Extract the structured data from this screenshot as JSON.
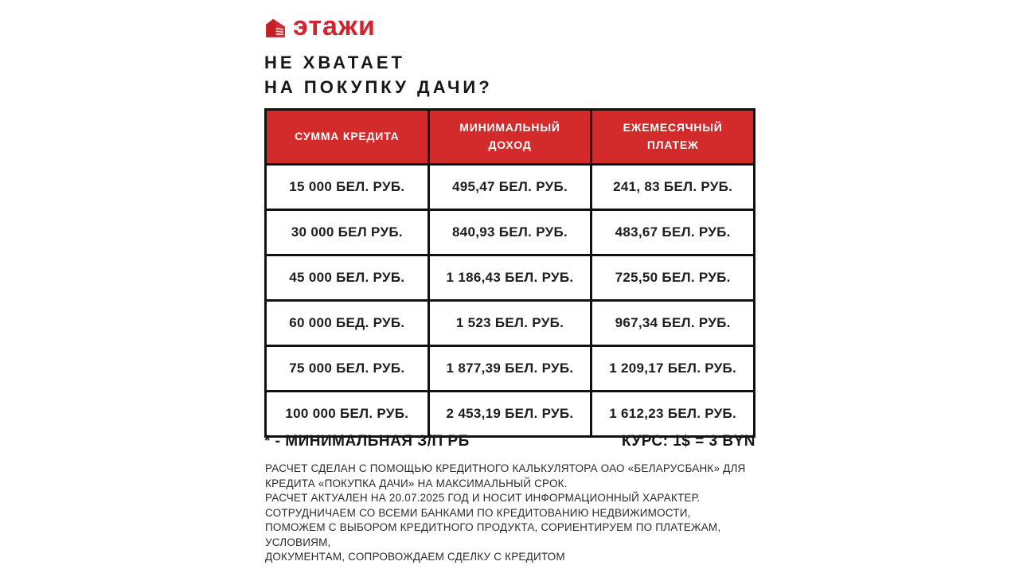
{
  "brand": {
    "logo_text": "этажи",
    "logo_color": "#d2232e",
    "logo_icon": "house-icon"
  },
  "title": {
    "line1": "НЕ ХВАТАЕТ",
    "line2": "НА ПОКУПКУ ДАЧИ?"
  },
  "table": {
    "header_bg": "#d32b2b",
    "border_color": "#111111",
    "headers": [
      "СУММА КРЕДИТА",
      "МИНИМАЛЬНЫЙ ДОХОД",
      "ЕЖЕМЕСЯЧНЫЙ ПЛАТЕЖ"
    ],
    "rows": [
      [
        "15 000 БЕЛ. РУБ.",
        "495,47 БЕЛ. РУБ.",
        "241, 83 БЕЛ. РУБ."
      ],
      [
        "30 000 БЕЛ РУБ.",
        "840,93 БЕЛ. РУБ.",
        "483,67 БЕЛ. РУБ."
      ],
      [
        "45 000 БЕЛ. РУБ.",
        "1 186,43 БЕЛ. РУБ.",
        "725,50 БЕЛ. РУБ."
      ],
      [
        "60 000 БЕД. РУБ.",
        "1 523 БЕЛ. РУБ.",
        "967,34 БЕЛ. РУБ."
      ],
      [
        "75 000 БЕЛ. РУБ.",
        "1 877,39 БЕЛ. РУБ.",
        "1 209,17 БЕЛ. РУБ."
      ],
      [
        "100 000 БЕЛ. РУБ.",
        "2 453,19 БЕЛ. РУБ.",
        "1 612,23 БЕЛ. РУБ."
      ]
    ]
  },
  "footnotes": {
    "left": "* - МИНИМАЛЬНАЯ З/П РБ",
    "right": "КУРС: 1$ = 3 BYN"
  },
  "disclaimer": {
    "lines": [
      "РАСЧЕТ СДЕЛАН С ПОМОЩЬЮ КРЕДИТНОГО КАЛЬКУЛЯТОРА ОАО «БЕЛАРУСБАНК» ДЛЯ",
      "КРЕДИТА «ПОКУПКА ДАЧИ» НА МАКСИМАЛЬНЫЙ СРОК.",
      "РАСЧЕТ АКТУАЛЕН НА 20.07.2025 ГОД И НОСИТ ИНФОРМАЦИОННЫЙ ХАРАКТЕР.",
      "СОТРУДНИЧАЕМ СО ВСЕМИ БАНКАМИ ПО КРЕДИТОВАНИЮ НЕДВИЖИМОСТИ,",
      "ПОМОЖЕМ С ВЫБОРОМ КРЕДИТНОГО ПРОДУКТА, СОРИЕНТИРУЕМ ПО ПЛАТЕЖАМ,",
      "УСЛОВИЯМ,",
      "ДОКУМЕНТАМ, СОПРОВОЖДАЕМ СДЕЛКУ С КРЕДИТОМ"
    ]
  },
  "chart_data": {
    "type": "table",
    "title": "НЕ ХВАТАЕТ НА ПОКУПКУ ДАЧИ?",
    "columns": [
      "СУММА КРЕДИТА",
      "МИНИМАЛЬНЫЙ ДОХОД",
      "ЕЖЕМЕСЯЧНЫЙ ПЛАТЕЖ"
    ],
    "credit_amounts_byn": [
      15000,
      30000,
      45000,
      60000,
      75000,
      100000
    ],
    "minimal_income_byn": [
      495.47,
      840.93,
      1186.43,
      1523,
      1877.39,
      2453.19
    ],
    "monthly_payment_byn": [
      241.83,
      483.67,
      725.5,
      967.34,
      1209.17,
      1612.23
    ],
    "exchange_rate": "1$ = 3 BYN"
  }
}
